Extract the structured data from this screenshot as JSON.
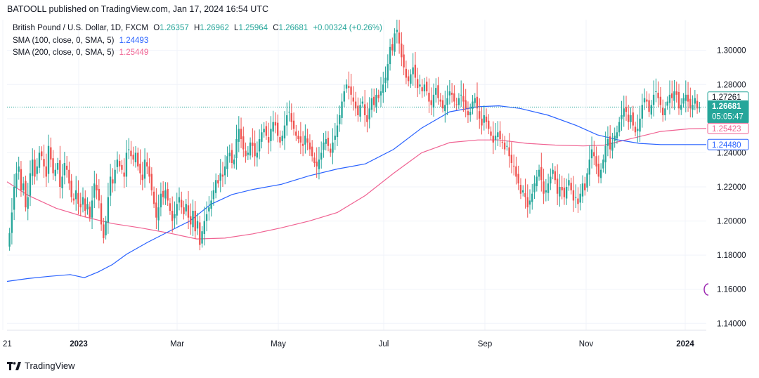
{
  "header": {
    "published_text": "BATOOLL published on TradingView.com, Jan 17, 2024 16:54 UTC"
  },
  "legend": {
    "symbol": "British Pound / U.S. Dollar, 1D, FXCM",
    "o_label": "O",
    "o_value": "1.26357",
    "h_label": "H",
    "h_value": "1.26962",
    "l_label": "L",
    "l_value": "1.25964",
    "c_label": "C",
    "c_value": "1.26681",
    "change": "+0.00324 (+0.26%)",
    "sma100_label": "SMA (100, close, 0, SMA, 5)",
    "sma100_value": "1.24493",
    "sma200_label": "SMA (200, close, 0, SMA, 5)",
    "sma200_value": "1.25449"
  },
  "footer": {
    "brand": "TradingView"
  },
  "colors": {
    "up": "#26a69a",
    "down": "#ef5350",
    "sma100": "#2962ff",
    "sma200": "#f06292",
    "grid": "#f0f3fa",
    "axis_text": "#131722"
  },
  "chart_data": {
    "type": "candlestick",
    "y_ticks": [
      "1.14000",
      "1.16000",
      "1.18000",
      "1.20000",
      "1.22000",
      "1.24000",
      "1.26000",
      "1.28000",
      "1.30000"
    ],
    "ylim": [
      1.136,
      1.318
    ],
    "x_ticks": [
      "21",
      "2023",
      "Mar",
      "May",
      "Jul",
      "Sep",
      "Nov",
      "2024"
    ],
    "price_labels": [
      {
        "value": "1.27261",
        "price": 1.27261,
        "series": "last-high"
      },
      {
        "value": "1.26681",
        "price": 1.26681,
        "series": "close",
        "timer": "05:05:47"
      },
      {
        "value": "1.25423",
        "price": 1.25423,
        "series": "sma200"
      },
      {
        "value": "1.24480",
        "price": 1.2448,
        "series": "sma100"
      }
    ],
    "last_close": 1.26681,
    "closes": [
      1.193,
      1.205,
      1.22,
      1.228,
      1.232,
      1.218,
      1.222,
      1.208,
      1.214,
      1.228,
      1.236,
      1.226,
      1.232,
      1.24,
      1.238,
      1.232,
      1.226,
      1.244,
      1.236,
      1.228,
      1.23,
      1.234,
      1.22,
      1.226,
      1.234,
      1.23,
      1.222,
      1.214,
      1.212,
      1.218,
      1.21,
      1.208,
      1.214,
      1.206,
      1.21,
      1.202,
      1.212,
      1.222,
      1.218,
      1.212,
      1.198,
      1.19,
      1.2,
      1.214,
      1.226,
      1.222,
      1.23,
      1.236,
      1.232,
      1.23,
      1.226,
      1.24,
      1.242,
      1.238,
      1.236,
      1.24,
      1.232,
      1.228,
      1.224,
      1.236,
      1.232,
      1.226,
      1.218,
      1.21,
      1.202,
      1.208,
      1.216,
      1.214,
      1.218,
      1.212,
      1.206,
      1.2,
      1.204,
      1.21,
      1.214,
      1.208,
      1.204,
      1.21,
      1.202,
      1.198,
      1.206,
      1.194,
      1.2,
      1.186,
      1.194,
      1.2,
      1.204,
      1.208,
      1.212,
      1.218,
      1.224,
      1.222,
      1.228,
      1.226,
      1.232,
      1.238,
      1.24,
      1.234,
      1.236,
      1.248,
      1.254,
      1.248,
      1.242,
      1.238,
      1.24,
      1.246,
      1.244,
      1.238,
      1.24,
      1.248,
      1.252,
      1.254,
      1.25,
      1.246,
      1.254,
      1.258,
      1.256,
      1.25,
      1.246,
      1.25,
      1.256,
      1.262,
      1.264,
      1.258,
      1.254,
      1.25,
      1.248,
      1.246,
      1.244,
      1.25,
      1.246,
      1.242,
      1.238,
      1.234,
      1.232,
      1.236,
      1.24,
      1.246,
      1.248,
      1.244,
      1.24,
      1.246,
      1.25,
      1.256,
      1.262,
      1.27,
      1.276,
      1.28,
      1.278,
      1.274,
      1.27,
      1.266,
      1.262,
      1.268,
      1.27,
      1.262,
      1.258,
      1.266,
      1.272,
      1.268,
      1.274,
      1.272,
      1.276,
      1.28,
      1.284,
      1.292,
      1.302,
      1.3,
      1.31,
      1.312,
      1.304,
      1.296,
      1.29,
      1.284,
      1.282,
      1.286,
      1.29,
      1.284,
      1.278,
      1.28,
      1.276,
      1.28,
      1.276,
      1.27,
      1.268,
      1.274,
      1.278,
      1.272,
      1.27,
      1.266,
      1.268,
      1.272,
      1.276,
      1.274,
      1.27,
      1.268,
      1.272,
      1.274,
      1.27,
      1.266,
      1.262,
      1.264,
      1.27,
      1.272,
      1.266,
      1.26,
      1.256,
      1.262,
      1.258,
      1.254,
      1.25,
      1.246,
      1.25,
      1.252,
      1.248,
      1.246,
      1.242,
      1.244,
      1.238,
      1.234,
      1.232,
      1.226,
      1.222,
      1.216,
      1.218,
      1.214,
      1.208,
      1.212,
      1.216,
      1.222,
      1.226,
      1.23,
      1.224,
      1.216,
      1.218,
      1.222,
      1.226,
      1.23,
      1.224,
      1.216,
      1.22,
      1.218,
      1.214,
      1.22,
      1.224,
      1.218,
      1.212,
      1.214,
      1.21,
      1.216,
      1.222,
      1.218,
      1.228,
      1.236,
      1.242,
      1.238,
      1.232,
      1.226,
      1.23,
      1.236,
      1.244,
      1.248,
      1.242,
      1.246,
      1.25,
      1.252,
      1.258,
      1.262,
      1.266,
      1.264,
      1.258,
      1.262,
      1.256,
      1.252,
      1.254,
      1.26,
      1.268,
      1.272,
      1.27,
      1.264,
      1.268,
      1.274,
      1.276,
      1.272,
      1.268,
      1.262,
      1.266,
      1.27,
      1.274,
      1.272,
      1.276,
      1.274,
      1.266,
      1.268,
      1.272,
      1.274,
      1.27,
      1.266,
      1.268,
      1.272,
      1.266,
      1.26681
    ],
    "sma100": [
      [
        10,
        1.1646
      ],
      [
        40,
        1.1663
      ],
      [
        70,
        1.1676
      ],
      [
        100,
        1.1686
      ],
      [
        120,
        1.1668
      ],
      [
        140,
        1.1702
      ],
      [
        160,
        1.1745
      ],
      [
        180,
        1.1805
      ],
      [
        210,
        1.1875
      ],
      [
        240,
        1.1938
      ],
      [
        270,
        1.2
      ],
      [
        300,
        1.2098
      ],
      [
        330,
        1.2155
      ],
      [
        360,
        1.2185
      ],
      [
        400,
        1.2215
      ],
      [
        440,
        1.2265
      ],
      [
        480,
        1.2305
      ],
      [
        520,
        1.2335
      ],
      [
        560,
        1.242
      ],
      [
        600,
        1.2545
      ],
      [
        640,
        1.264
      ],
      [
        680,
        1.267
      ],
      [
        710,
        1.2675
      ],
      [
        740,
        1.266
      ],
      [
        780,
        1.262
      ],
      [
        820,
        1.256
      ],
      [
        850,
        1.2505
      ],
      [
        880,
        1.2475
      ],
      [
        910,
        1.2455
      ],
      [
        940,
        1.2448
      ],
      [
        1005,
        1.2448
      ]
    ],
    "sma200": [
      [
        10,
        1.223
      ],
      [
        40,
        1.215
      ],
      [
        80,
        1.2075
      ],
      [
        120,
        1.2025
      ],
      [
        160,
        1.1985
      ],
      [
        200,
        1.196
      ],
      [
        240,
        1.193
      ],
      [
        280,
        1.1895
      ],
      [
        320,
        1.19
      ],
      [
        360,
        1.1925
      ],
      [
        400,
        1.196
      ],
      [
        440,
        1.2
      ],
      [
        480,
        1.205
      ],
      [
        520,
        1.215
      ],
      [
        560,
        1.228
      ],
      [
        600,
        1.24
      ],
      [
        640,
        1.246
      ],
      [
        680,
        1.2475
      ],
      [
        710,
        1.2475
      ],
      [
        750,
        1.2455
      ],
      [
        790,
        1.2445
      ],
      [
        830,
        1.244
      ],
      [
        860,
        1.2445
      ],
      [
        900,
        1.2485
      ],
      [
        940,
        1.2525
      ],
      [
        980,
        1.254
      ],
      [
        1005,
        1.2542
      ]
    ]
  }
}
